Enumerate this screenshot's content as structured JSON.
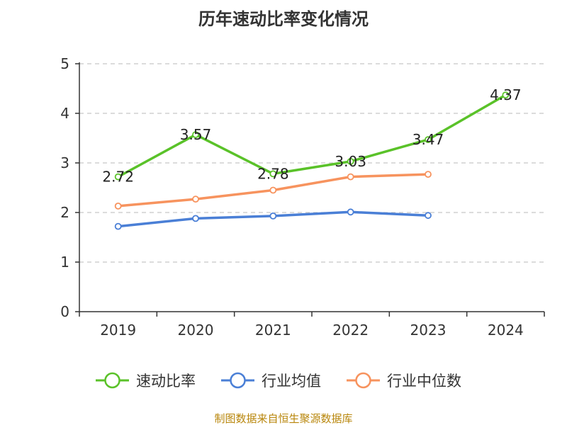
{
  "chart_data": {
    "type": "line",
    "title": "历年速动比率变化情况",
    "categories": [
      "2019",
      "2020",
      "2021",
      "2022",
      "2023",
      "2024"
    ],
    "ylim": [
      0,
      5
    ],
    "yticks": [
      "0",
      "1",
      "2",
      "3",
      "4",
      "5"
    ],
    "grid": true,
    "legend_position": "bottom",
    "series": [
      {
        "name": "速动比率",
        "color": "#5ac229",
        "values": [
          2.72,
          3.57,
          2.78,
          3.03,
          3.47,
          4.37
        ],
        "labels": [
          "2.72",
          "3.57",
          "2.78",
          "3.03",
          "3.47",
          "4.37"
        ]
      },
      {
        "name": "行业均值",
        "color": "#4a7fd6",
        "values": [
          1.72,
          1.88,
          1.93,
          2.01,
          1.94,
          null
        ]
      },
      {
        "name": "行业中位数",
        "color": "#f7935e",
        "values": [
          2.13,
          2.27,
          2.45,
          2.72,
          2.77,
          null
        ]
      }
    ],
    "source": "制图数据来自恒生聚源数据库"
  }
}
